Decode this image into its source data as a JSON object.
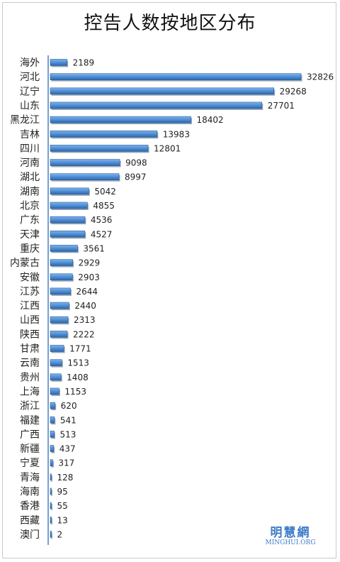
{
  "chart_data": {
    "type": "bar",
    "orientation": "horizontal",
    "title": "控告人数按地区分布",
    "categories": [
      "海外",
      "河北",
      "辽宁",
      "山东",
      "黑龙江",
      "吉林",
      "四川",
      "河南",
      "湖北",
      "湖南",
      "北京",
      "广东",
      "天津",
      "重庆",
      "内蒙古",
      "安徽",
      "江苏",
      "江西",
      "山西",
      "陕西",
      "甘肃",
      "云南",
      "贵州",
      "上海",
      "浙江",
      "福建",
      "广西",
      "新疆",
      "宁夏",
      "青海",
      "海南",
      "香港",
      "西藏",
      "澳门"
    ],
    "values": [
      2189,
      32826,
      29268,
      27701,
      18402,
      13983,
      12801,
      9098,
      8997,
      5042,
      4855,
      4536,
      4527,
      3561,
      2929,
      2903,
      2644,
      2440,
      2313,
      2222,
      1771,
      1513,
      1408,
      1153,
      620,
      541,
      513,
      437,
      317,
      128,
      95,
      55,
      13,
      2
    ],
    "value_labels": [
      "2189",
      "32826",
      "29268",
      "27701",
      "18402",
      "13983",
      "12801",
      "9098",
      "8997",
      "5042",
      "4855",
      "4536",
      "4527",
      "3561",
      "2929",
      "2903",
      "2644",
      "2440",
      "2313",
      "2222",
      "1771",
      "1513",
      "1408",
      "1153",
      "620",
      "541",
      "513",
      "437",
      "317",
      "128",
      "95",
      "55",
      "13",
      "2"
    ],
    "xlim": [
      0,
      32826
    ],
    "grid": false,
    "legend": "none",
    "bar_color": "#4f8fd6",
    "bar_edge_color": "#2b5f9e"
  },
  "watermark": {
    "brand": "明慧網",
    "site": "MINGHUI.ORG",
    "color": "#3d7cc9"
  }
}
